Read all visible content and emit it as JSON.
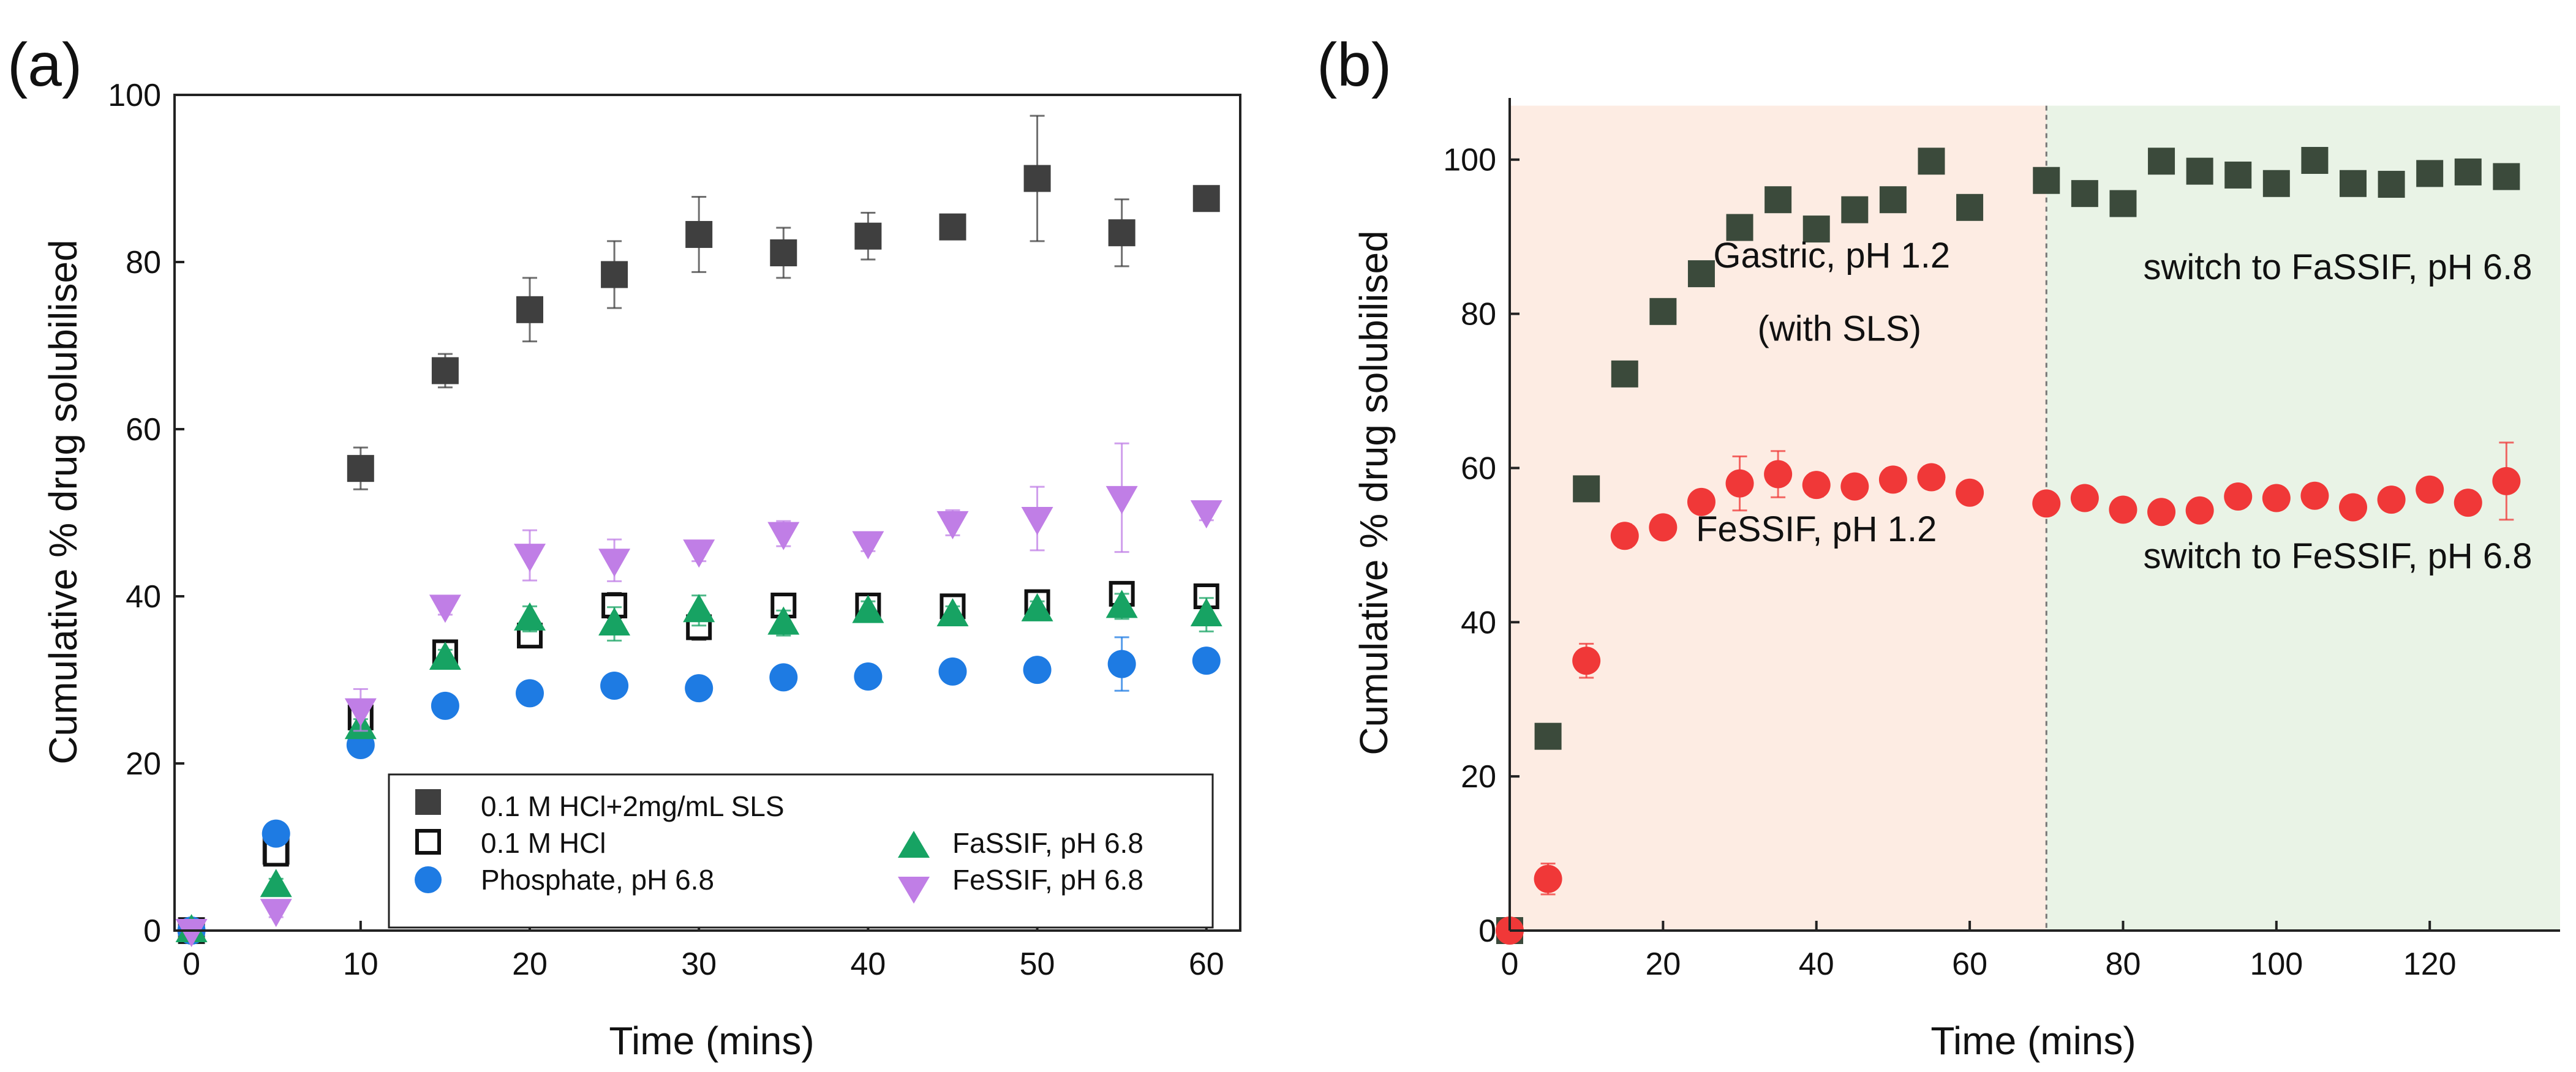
{
  "colors": {
    "sls": "#3f3f3f",
    "hcl": "#111111",
    "phosphate": "#1e7be3",
    "fassif": "#17a363",
    "fessif": "#c07ee6",
    "gastric_series": "#3b4a3b",
    "fessif_b_series": "#f03838",
    "gastric_bg": "#fdece3",
    "intestinal_bg": "#e9f3e6",
    "divider": "#777777"
  },
  "chart_data": [
    {
      "panel_label": "(a)",
      "type": "scatter",
      "xlabel": "Time (mins)",
      "ylabel": "Cumulative % drug solubilised",
      "xlim": [
        -1,
        62
      ],
      "ylim": [
        0,
        100
      ],
      "xticks": [
        0,
        10,
        20,
        30,
        40,
        50,
        60
      ],
      "yticks": [
        0,
        20,
        40,
        60,
        80,
        100
      ],
      "legend_position": "bottom-center",
      "series": [
        {
          "name": "0.1 M HCl+2mg/mL SLS",
          "marker": "square-filled",
          "color": "#3f3f3f",
          "x": [
            0,
            5,
            10,
            15,
            20,
            25,
            30,
            35,
            40,
            45,
            50,
            55,
            60
          ],
          "y": [
            0,
            9.5,
            55.3,
            67,
            74.3,
            78.5,
            83.3,
            81.1,
            83.1,
            84.2,
            90,
            83.5,
            87.6
          ],
          "err": [
            0,
            1,
            2.5,
            2,
            3.8,
            4,
            4.5,
            3,
            2.8,
            1.2,
            7.5,
            4,
            0
          ]
        },
        {
          "name": "0.1 M HCl",
          "marker": "square-open",
          "color": "#111111",
          "x": [
            0,
            5,
            10,
            15,
            20,
            25,
            30,
            35,
            40,
            45,
            50,
            55,
            60
          ],
          "y": [
            0,
            9.2,
            25.5,
            33.3,
            35.3,
            38.9,
            36.3,
            38.9,
            38.9,
            38.8,
            39.3,
            40.3,
            40
          ],
          "err": [
            0,
            1,
            1.5,
            1,
            1.2,
            1.5,
            1.5,
            1,
            1,
            1,
            1,
            1,
            1
          ]
        },
        {
          "name": "Phosphate, pH 6.8",
          "marker": "circle",
          "color": "#1e7be3",
          "x": [
            0,
            5,
            10,
            15,
            20,
            25,
            30,
            35,
            40,
            45,
            50,
            55,
            60
          ],
          "y": [
            0,
            11.6,
            22.2,
            26.9,
            28.4,
            29.3,
            29,
            30.3,
            30.4,
            31,
            31.2,
            31.9,
            32.3
          ],
          "err": [
            0,
            0.6,
            1,
            0.8,
            0.8,
            0.8,
            0.8,
            0.8,
            0.8,
            0.8,
            0.8,
            3.2,
            0.8
          ]
        },
        {
          "name": "FaSSIF, pH 6.8",
          "marker": "triangle-up",
          "color": "#17a363",
          "x": [
            0,
            5,
            10,
            15,
            20,
            25,
            30,
            35,
            40,
            45,
            50,
            55,
            60
          ],
          "y": [
            0,
            5.4,
            24.3,
            32.6,
            37.3,
            36.7,
            38.3,
            36.8,
            38.2,
            37.8,
            38.4,
            38.8,
            37.8
          ],
          "err": [
            0,
            0.8,
            1,
            1,
            1.5,
            2,
            1.8,
            1.5,
            1.2,
            1,
            1,
            1.5,
            2
          ]
        },
        {
          "name": "FeSSIF, pH 6.8",
          "marker": "triangle-down",
          "color": "#c07ee6",
          "x": [
            0,
            5,
            10,
            15,
            20,
            25,
            30,
            35,
            40,
            45,
            50,
            55,
            60
          ],
          "y": [
            0,
            2.4,
            26.4,
            38.8,
            44.9,
            44.3,
            45.4,
            47.5,
            46.4,
            48.8,
            49.3,
            51.8,
            50.1
          ],
          "err": [
            0,
            0.8,
            2.5,
            1,
            3,
            2.5,
            1.2,
            1.5,
            1,
            1.5,
            3.8,
            6.5,
            1
          ]
        }
      ]
    },
    {
      "panel_label": "(b)",
      "type": "scatter",
      "xlabel": "Time (mins)",
      "ylabel": "Cumulative % drug solubilised",
      "xlim": [
        0,
        137
      ],
      "ylim": [
        0,
        108
      ],
      "xticks": [
        0,
        20,
        40,
        60,
        80,
        100,
        120
      ],
      "yticks": [
        0,
        20,
        40,
        60,
        80,
        100
      ],
      "switch_time": 70,
      "annotations": [
        {
          "text": "Gastric, pH 1.2",
          "x": 42,
          "y": 86
        },
        {
          "text": "(with SLS)",
          "x": 43,
          "y": 76.5
        },
        {
          "text": "FeSSIF, pH 1.2",
          "x": 40,
          "y": 50.5
        },
        {
          "text": "switch to FaSSIF, pH 6.8",
          "x": 108,
          "y": 84.5
        },
        {
          "text": "switch to FeSSIF, pH 6.8",
          "x": 108,
          "y": 47
        }
      ],
      "series": [
        {
          "name": "Gastric, pH 1.2 (with SLS) → FaSSIF, pH 6.8",
          "marker": "square-filled",
          "color": "#3b4a3b",
          "x": [
            0,
            5,
            10,
            15,
            20,
            25,
            30,
            35,
            40,
            45,
            50,
            55,
            60,
            70,
            75,
            80,
            85,
            90,
            95,
            100,
            105,
            110,
            115,
            120,
            125,
            130
          ],
          "y": [
            0,
            25.2,
            57.3,
            72.2,
            80.3,
            85.2,
            91.2,
            94.8,
            91,
            93.5,
            94.8,
            99.8,
            93.8,
            97.3,
            95.6,
            94.3,
            99.8,
            98.5,
            98,
            96.9,
            99.9,
            96.9,
            96.8,
            98.2,
            98.4,
            97.8
          ],
          "err": [
            0,
            0,
            0,
            0,
            0,
            0,
            0,
            0,
            0,
            0,
            0,
            0,
            0,
            0,
            0,
            0,
            0,
            0,
            0,
            0,
            0,
            0,
            0,
            0,
            0,
            0
          ]
        },
        {
          "name": "FeSSIF, pH 1.2 → FeSSIF, pH 6.8",
          "marker": "circle",
          "color": "#f03838",
          "x": [
            0,
            5,
            10,
            15,
            20,
            25,
            30,
            35,
            40,
            45,
            50,
            55,
            60,
            70,
            75,
            80,
            85,
            90,
            95,
            100,
            105,
            110,
            115,
            120,
            125,
            130
          ],
          "y": [
            0,
            6.7,
            35,
            51.2,
            52.3,
            55.6,
            58,
            59.2,
            57.8,
            57.6,
            58.5,
            58.8,
            56.8,
            55.4,
            56.1,
            54.6,
            54.3,
            54.5,
            56.3,
            56.1,
            56.4,
            54.9,
            55.9,
            57.2,
            55.5,
            58.3
          ],
          "err": [
            0,
            2,
            2.2,
            1.5,
            0.8,
            0.8,
            3.5,
            3,
            1.5,
            1,
            1.5,
            1,
            0.8,
            0.8,
            0.8,
            1,
            1.2,
            1,
            0.8,
            0.8,
            1,
            0.8,
            0.8,
            1,
            0.8,
            5
          ]
        }
      ]
    }
  ]
}
